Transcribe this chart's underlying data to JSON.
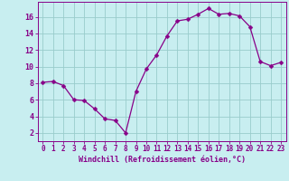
{
  "x": [
    0,
    1,
    2,
    3,
    4,
    5,
    6,
    7,
    8,
    9,
    10,
    11,
    12,
    13,
    14,
    15,
    16,
    17,
    18,
    19,
    20,
    21,
    22,
    23
  ],
  "y": [
    8.1,
    8.2,
    7.7,
    6.0,
    5.9,
    4.9,
    3.7,
    3.5,
    2.0,
    7.0,
    9.7,
    11.4,
    13.7,
    15.5,
    15.7,
    16.3,
    17.0,
    16.3,
    16.4,
    16.1,
    14.8,
    10.6,
    10.1,
    10.5
  ],
  "line_color": "#880088",
  "marker": "D",
  "marker_size": 2.5,
  "bg_color": "#c8eef0",
  "grid_color": "#99cccc",
  "xlabel": "Windchill (Refroidissement éolien,°C)",
  "ylabel_ticks": [
    2,
    4,
    6,
    8,
    10,
    12,
    14,
    16
  ],
  "xlim": [
    -0.5,
    23.5
  ],
  "ylim": [
    1.0,
    17.8
  ],
  "tick_fontsize": 5.5,
  "label_fontsize": 6.0
}
